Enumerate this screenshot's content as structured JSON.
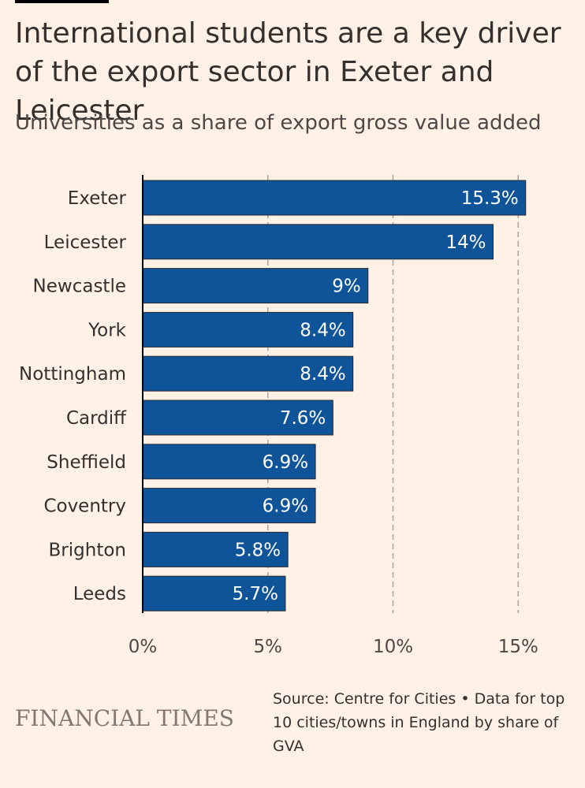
{
  "header": {
    "title": "International students are a key driver of the export sector in Exeter and Leicester",
    "subtitle": "Universities as a share of export gross value added"
  },
  "footer": {
    "brand": "FINANCIAL TIMES",
    "source": "Source: Centre for Cities • Data for top 10 cities/towns in England by share of GVA"
  },
  "colors": {
    "background": "#fff1e5",
    "bar": "#0f5499",
    "bar_label": "#ffffff",
    "grid": "#a9a19b",
    "text": "#33302e"
  },
  "chart_data": {
    "type": "bar",
    "orientation": "horizontal",
    "title": "International students are a key driver of the export sector in Exeter and Leicester",
    "subtitle": "Universities as a share of export gross value added",
    "categories": [
      "Exeter",
      "Leicester",
      "Newcastle",
      "York",
      "Nottingham",
      "Cardiff",
      "Sheffield",
      "Coventry",
      "Brighton",
      "Leeds"
    ],
    "values": [
      15.3,
      14,
      9,
      8.4,
      8.4,
      7.6,
      6.9,
      6.9,
      5.8,
      5.7
    ],
    "data_labels": [
      "15.3%",
      "14%",
      "9%",
      "8.4%",
      "8.4%",
      "7.6%",
      "6.9%",
      "6.9%",
      "5.8%",
      "5.7%"
    ],
    "xlim": [
      0,
      15
    ],
    "xticks": [
      0,
      5,
      10,
      15
    ],
    "xtick_labels": [
      "0%",
      "5%",
      "10%",
      "15%"
    ],
    "xlabel": "",
    "ylabel": "",
    "grid": "vertical dashed"
  }
}
